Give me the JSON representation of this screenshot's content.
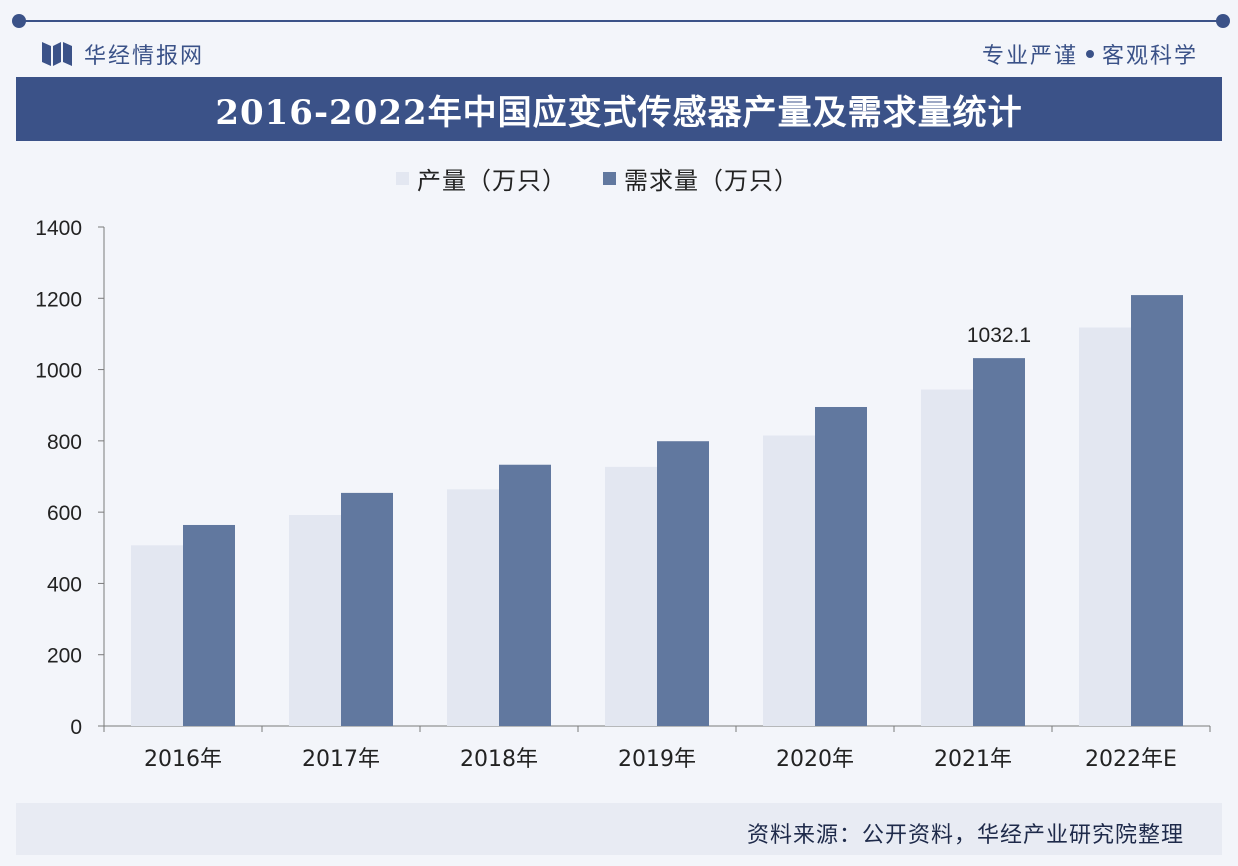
{
  "header": {
    "brand_name": "华经情报网",
    "slogan_left": "专业严谨",
    "slogan_right": "客观科学"
  },
  "title": "2016-2022年中国应变式传感器产量及需求量统计",
  "legend": [
    {
      "label": "产量（万只）",
      "color": "#e3e7f1"
    },
    {
      "label": "需求量（万只）",
      "color": "#61789f"
    }
  ],
  "chart_data": {
    "type": "bar",
    "title": "2016-2022年中国应变式传感器产量及需求量统计",
    "categories": [
      "2016年",
      "2017年",
      "2018年",
      "2019年",
      "2020年",
      "2021年",
      "2022年E"
    ],
    "series": [
      {
        "name": "产量（万只）",
        "color": "#e3e7f1",
        "values": [
          507,
          592,
          664,
          727,
          815,
          944,
          1118
        ]
      },
      {
        "name": "需求量（万只）",
        "color": "#61789f",
        "values": [
          564,
          654,
          733,
          799,
          895,
          1032.1,
          1209
        ]
      }
    ],
    "data_labels": [
      {
        "series": 1,
        "category": 5,
        "text": "1032.1"
      }
    ],
    "ylim": [
      0,
      1400
    ],
    "yticks": [
      0,
      200,
      400,
      600,
      800,
      1000,
      1200,
      1400
    ],
    "xlabel": "",
    "ylabel": "",
    "grid": false,
    "legend_position": "top-center"
  },
  "footer": {
    "source": "资料来源：公开资料，华经产业研究院整理"
  }
}
